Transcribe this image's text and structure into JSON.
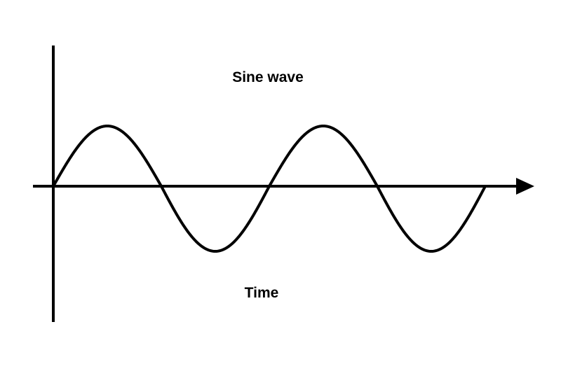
{
  "diagram": {
    "title": "Sine wave",
    "xlabel": "Time",
    "waveform": "sine",
    "cycles": 2,
    "starts_at_origin": true,
    "x_axis_arrow": true,
    "line_color": "#000000",
    "background": "#ffffff"
  }
}
